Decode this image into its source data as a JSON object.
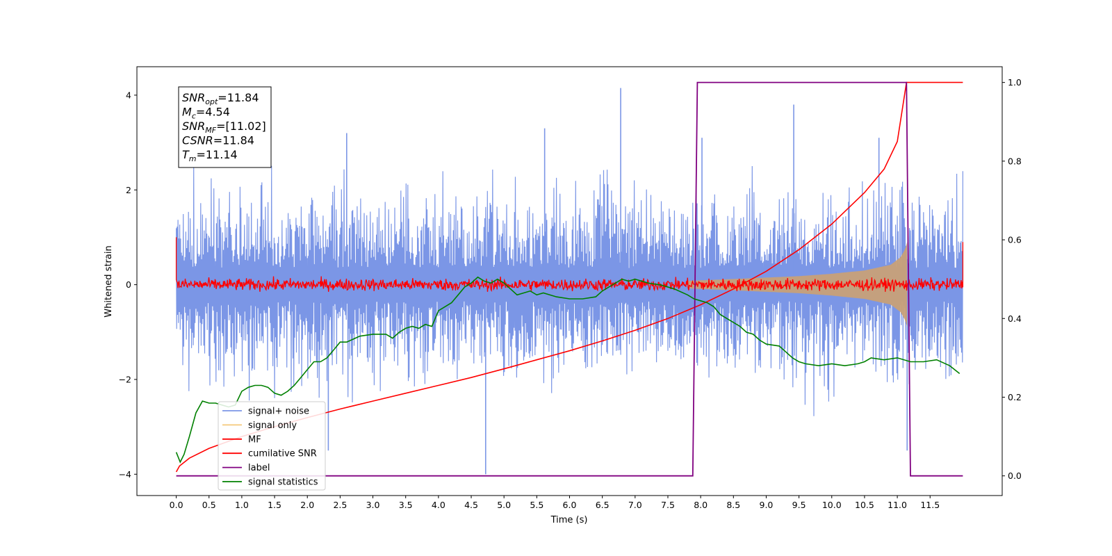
{
  "chart_data": {
    "type": "line",
    "xlabel": "Time (s)",
    "ylabel": "Whitened strain",
    "xlim": [
      -0.6,
      12.6
    ],
    "ylim": [
      -4.45,
      4.6
    ],
    "y2lim": [
      -0.05,
      1.04
    ],
    "x_ticks": [
      0.0,
      0.5,
      1.0,
      1.5,
      2.0,
      2.5,
      3.0,
      3.5,
      4.0,
      4.5,
      5.0,
      5.5,
      6.0,
      6.5,
      7.0,
      7.5,
      8.0,
      8.5,
      9.0,
      9.5,
      10.0,
      10.5,
      11.0,
      11.5
    ],
    "x_tick_labels": [
      "0.0",
      "0.5",
      "1.0",
      "1.5",
      "2.0",
      "2.5",
      "3.0",
      "3.5",
      "4.0",
      "4.5",
      "5.0",
      "5.5",
      "6.0",
      "6.5",
      "7.0",
      "7.5",
      "8.0",
      "8.5",
      "9.0",
      "9.5",
      "10.0",
      "10.5",
      "11.0",
      "11.5"
    ],
    "y_ticks": [
      4,
      2,
      0,
      -2,
      -4
    ],
    "y_tick_labels": [
      "4",
      "2",
      "0",
      "−2",
      "−4"
    ],
    "y2_ticks": [
      1.0,
      0.8,
      0.6,
      0.4,
      0.2,
      0.0
    ],
    "y2_tick_labels": [
      "1.0",
      "0.8",
      "0.6",
      "0.4",
      "0.2",
      "0.0"
    ],
    "annotation": {
      "lines": [
        {
          "base": "SNR",
          "sub": "opt",
          "rest": "=11.84"
        },
        {
          "base": "M",
          "sub": "c",
          "rest": "=4.54"
        },
        {
          "base": "SNR",
          "sub": "MF",
          "rest": "=[11.02]"
        },
        {
          "base": "CSNR",
          "sub": "",
          "rest": "=11.84"
        },
        {
          "base": "T",
          "sub": "m",
          "rest": "=11.14"
        }
      ]
    },
    "legend_position": "lower-left",
    "legend": [
      {
        "label": "signal+ noise",
        "color": "#7b96e6"
      },
      {
        "label": "signal only",
        "color": "#f5c87a"
      },
      {
        "label": "MF",
        "color": "#ff0000"
      },
      {
        "label": "cumilative SNR",
        "color": "#ff0000"
      },
      {
        "label": "label",
        "color": "#800080"
      },
      {
        "label": "signal statistics",
        "color": "#008000"
      }
    ],
    "series": [
      {
        "name": "signal+ noise",
        "color": "#7b96e6",
        "axis": "left",
        "band": {
          "x_start": 0.0,
          "x_end": 12.0,
          "upper_typical": 1.9,
          "lower_typical": -1.9
        },
        "peaks": [
          [
            4.72,
            -4.0
          ],
          [
            6.78,
            4.15
          ],
          [
            9.42,
            3.8
          ],
          [
            2.6,
            3.2
          ],
          [
            5.62,
            3.3
          ],
          [
            8.02,
            3.1
          ],
          [
            10.72,
            3.1
          ],
          [
            11.15,
            -3.5
          ],
          [
            2.32,
            -3.5
          ]
        ]
      },
      {
        "name": "signal only",
        "color": "#c8a078",
        "axis": "left",
        "envelope": {
          "x": [
            7.8,
            8.5,
            9.0,
            9.5,
            10.0,
            10.5,
            10.9,
            11.05,
            11.12,
            11.15
          ],
          "amp": [
            0.08,
            0.12,
            0.15,
            0.18,
            0.23,
            0.3,
            0.42,
            0.58,
            0.75,
            0.9
          ]
        }
      },
      {
        "name": "MF",
        "color": "#ff0000",
        "axis": "left",
        "band": {
          "x_start": 0.0,
          "x_end": 12.0,
          "amp": 0.2
        },
        "edges": [
          [
            0.0,
            1.0
          ],
          [
            12.0,
            0.9
          ]
        ]
      },
      {
        "name": "cumilative SNR",
        "color": "#ff0000",
        "axis": "right",
        "x": [
          0.0,
          0.05,
          0.2,
          0.5,
          1.0,
          1.5,
          2.0,
          2.5,
          3.0,
          3.5,
          4.0,
          4.5,
          5.0,
          5.5,
          6.0,
          6.5,
          7.0,
          7.5,
          8.0,
          8.5,
          9.0,
          9.5,
          10.0,
          10.5,
          10.8,
          11.0,
          11.14,
          12.0
        ],
        "y": [
          0.01,
          0.025,
          0.045,
          0.07,
          0.1,
          0.125,
          0.148,
          0.17,
          0.19,
          0.21,
          0.23,
          0.25,
          0.272,
          0.295,
          0.318,
          0.343,
          0.37,
          0.4,
          0.435,
          0.475,
          0.52,
          0.575,
          0.64,
          0.72,
          0.78,
          0.85,
          1.0,
          1.0
        ]
      },
      {
        "name": "label",
        "color": "#800080",
        "axis": "right",
        "x": [
          0.0,
          7.88,
          7.95,
          11.14,
          11.2,
          12.0
        ],
        "y": [
          0.0,
          0.0,
          1.0,
          1.0,
          0.0,
          0.0
        ]
      },
      {
        "name": "signal statistics",
        "color": "#008000",
        "axis": "right",
        "x": [
          0.0,
          0.06,
          0.12,
          0.2,
          0.3,
          0.4,
          0.5,
          0.6,
          0.7,
          0.8,
          0.9,
          1.0,
          1.1,
          1.2,
          1.3,
          1.4,
          1.5,
          1.6,
          1.7,
          1.8,
          1.9,
          2.0,
          2.1,
          2.2,
          2.3,
          2.4,
          2.5,
          2.6,
          2.8,
          3.0,
          3.2,
          3.3,
          3.4,
          3.5,
          3.6,
          3.7,
          3.8,
          3.9,
          4.0,
          4.1,
          4.2,
          4.3,
          4.4,
          4.5,
          4.6,
          4.7,
          4.8,
          4.9,
          5.0,
          5.1,
          5.2,
          5.3,
          5.4,
          5.5,
          5.6,
          5.8,
          6.0,
          6.2,
          6.4,
          6.5,
          6.6,
          6.7,
          6.8,
          6.9,
          7.0,
          7.2,
          7.4,
          7.6,
          7.8,
          7.9,
          8.0,
          8.1,
          8.2,
          8.3,
          8.4,
          8.5,
          8.6,
          8.7,
          8.8,
          8.9,
          9.0,
          9.2,
          9.4,
          9.5,
          9.6,
          9.8,
          10.0,
          10.2,
          10.4,
          10.5,
          10.6,
          10.8,
          11.0,
          11.2,
          11.4,
          11.6,
          11.8,
          11.95
        ],
        "y": [
          0.06,
          0.035,
          0.055,
          0.1,
          0.16,
          0.19,
          0.185,
          0.185,
          0.18,
          0.175,
          0.18,
          0.215,
          0.225,
          0.23,
          0.23,
          0.225,
          0.21,
          0.205,
          0.215,
          0.23,
          0.25,
          0.27,
          0.29,
          0.29,
          0.3,
          0.32,
          0.34,
          0.34,
          0.355,
          0.36,
          0.36,
          0.35,
          0.365,
          0.375,
          0.38,
          0.375,
          0.385,
          0.38,
          0.42,
          0.43,
          0.44,
          0.46,
          0.48,
          0.49,
          0.505,
          0.495,
          0.49,
          0.5,
          0.49,
          0.475,
          0.46,
          0.465,
          0.47,
          0.46,
          0.465,
          0.455,
          0.45,
          0.45,
          0.455,
          0.47,
          0.48,
          0.49,
          0.5,
          0.495,
          0.5,
          0.49,
          0.485,
          0.475,
          0.46,
          0.45,
          0.445,
          0.44,
          0.43,
          0.41,
          0.4,
          0.39,
          0.38,
          0.365,
          0.36,
          0.345,
          0.335,
          0.33,
          0.3,
          0.29,
          0.285,
          0.28,
          0.285,
          0.28,
          0.285,
          0.29,
          0.3,
          0.295,
          0.3,
          0.29,
          0.29,
          0.295,
          0.28,
          0.26
        ]
      }
    ]
  }
}
